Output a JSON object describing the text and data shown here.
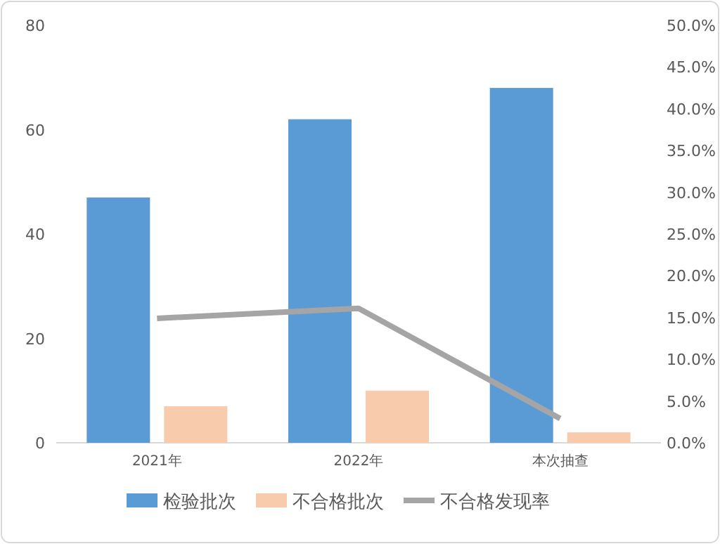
{
  "chart_data": {
    "type": "bar",
    "categories": [
      "2021年",
      "2022年",
      "本次抽查"
    ],
    "series": [
      {
        "name": "检验批次",
        "color": "#5b9bd5",
        "values": [
          47,
          62,
          68
        ]
      },
      {
        "name": "不合格批次",
        "color": "#f8cbad",
        "values": [
          7,
          10,
          2
        ]
      },
      {
        "name": "不合格发现率",
        "color": "#a5a5a5",
        "type": "line",
        "axis": "y2",
        "values": [
          14.9,
          16.1,
          2.9
        ]
      }
    ],
    "ylim": [
      0,
      80
    ],
    "yticks": [
      0,
      20,
      40,
      60,
      80
    ],
    "y2lim": [
      0,
      50
    ],
    "y2ticks": [
      {
        "value": 0,
        "label": "0.0%"
      },
      {
        "value": 5,
        "label": "5.0%"
      },
      {
        "value": 10,
        "label": "10.0%"
      },
      {
        "value": 15,
        "label": "15.0%"
      },
      {
        "value": 20,
        "label": "20.0%"
      },
      {
        "value": 25,
        "label": "25.0%"
      },
      {
        "value": 30,
        "label": "30.0%"
      },
      {
        "value": 35,
        "label": "35.0%"
      },
      {
        "value": 40,
        "label": "40.0%"
      },
      {
        "value": 45,
        "label": "45.0%"
      },
      {
        "value": 50,
        "label": "50.0%"
      }
    ],
    "legend": "bottom"
  }
}
